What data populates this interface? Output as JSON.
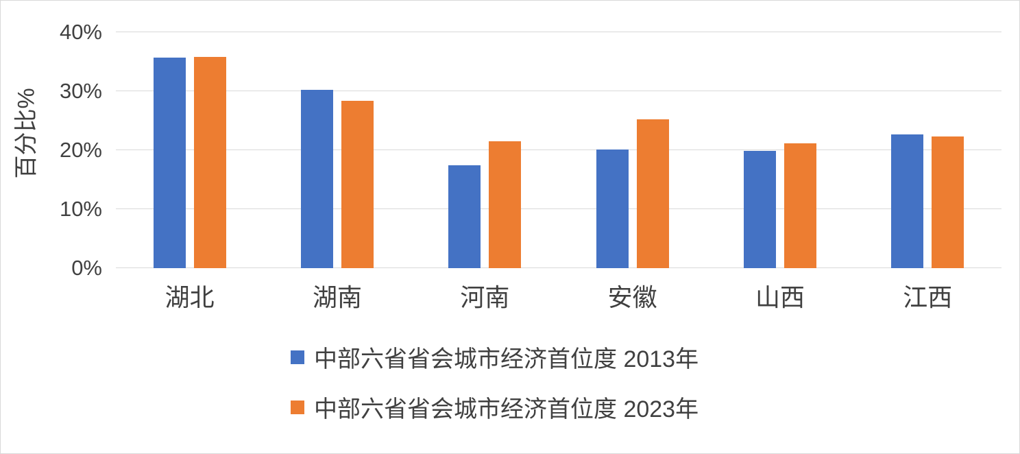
{
  "chart_data": {
    "type": "bar",
    "title": "",
    "xlabel": "",
    "ylabel": "百分比%",
    "ylim": [
      0,
      40
    ],
    "yticks": [
      0,
      10,
      20,
      30,
      40
    ],
    "ytick_labels": [
      "0%",
      "10%",
      "20%",
      "30%",
      "40%"
    ],
    "categories": [
      "湖北",
      "湖南",
      "河南",
      "安徽",
      "山西",
      "江西"
    ],
    "series": [
      {
        "name": "中部六省省会城市经济首位度 2013年",
        "color": "#4472C4",
        "values": [
          35.7,
          30.2,
          17.4,
          20.1,
          19.9,
          22.7
        ]
      },
      {
        "name": "中部六省省会城市经济首位度 2023年",
        "color": "#ED7D31",
        "values": [
          35.8,
          28.4,
          21.5,
          25.2,
          21.2,
          22.3
        ]
      }
    ],
    "grid": true,
    "legend_position": "bottom"
  }
}
